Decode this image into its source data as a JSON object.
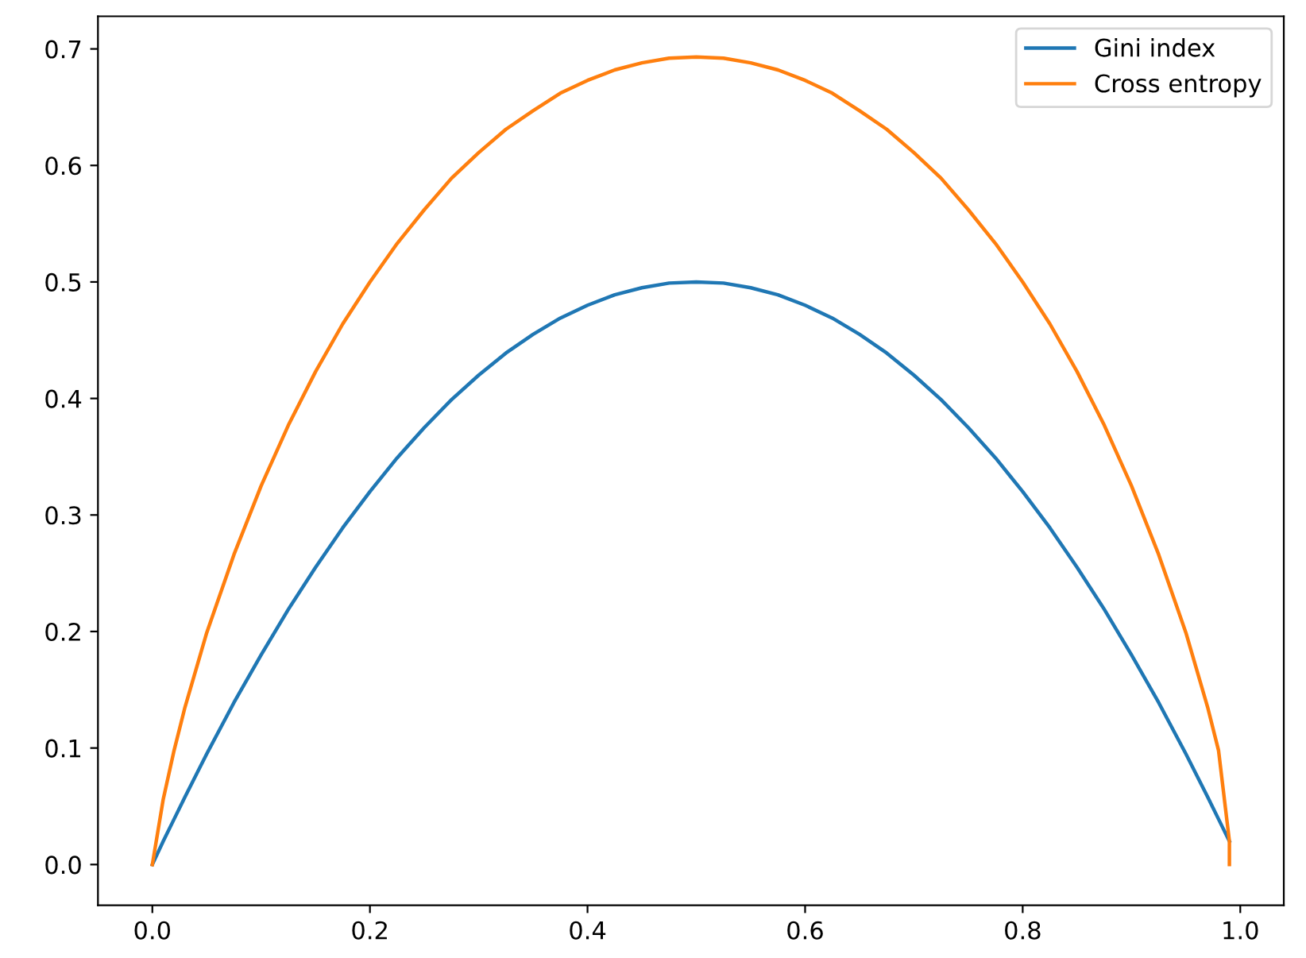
{
  "chart_data": {
    "type": "line",
    "xlim": [
      -0.05,
      1.04
    ],
    "ylim": [
      -0.035,
      0.728
    ],
    "xticks": [
      {
        "value": 0,
        "label": "0.0"
      },
      0.2,
      0.4,
      0.6,
      0.8,
      {
        "value": 1,
        "label": "1.0"
      }
    ],
    "yticks": [
      {
        "value": 0,
        "label": "0.0"
      },
      0.1,
      0.2,
      0.3,
      0.4,
      0.5,
      0.6,
      0.7
    ],
    "grid": false,
    "legend": "top right",
    "line_style": "solid",
    "marker": "none",
    "series": [
      {
        "name": "Gini index",
        "color": "#1f77b4",
        "x": [
          0,
          0.01,
          0.02,
          0.03,
          0.05,
          0.075,
          0.1,
          0.125,
          0.15,
          0.175,
          0.2,
          0.225,
          0.25,
          0.275,
          0.3,
          0.325,
          0.35,
          0.375,
          0.4,
          0.425,
          0.45,
          0.475,
          0.5,
          0.525,
          0.55,
          0.575,
          0.6,
          0.625,
          0.65,
          0.675,
          0.7,
          0.725,
          0.75,
          0.775,
          0.8,
          0.825,
          0.85,
          0.875,
          0.9,
          0.925,
          0.95,
          0.97,
          0.98,
          0.99
        ],
        "values": [
          0,
          0.02,
          0.039,
          0.058,
          0.095,
          0.139,
          0.18,
          0.219,
          0.255,
          0.289,
          0.32,
          0.349,
          0.375,
          0.399,
          0.42,
          0.439,
          0.455,
          0.469,
          0.48,
          0.489,
          0.495,
          0.499,
          0.5,
          0.499,
          0.495,
          0.489,
          0.48,
          0.469,
          0.455,
          0.439,
          0.42,
          0.399,
          0.375,
          0.349,
          0.32,
          0.289,
          0.255,
          0.219,
          0.18,
          0.139,
          0.095,
          0.058,
          0.039,
          0.02
        ]
      },
      {
        "name": "Cross entropy",
        "color": "#ff7f0e",
        "x": [
          0,
          0.01,
          0.02,
          0.03,
          0.05,
          0.075,
          0.1,
          0.125,
          0.15,
          0.175,
          0.2,
          0.225,
          0.25,
          0.275,
          0.3,
          0.325,
          0.35,
          0.375,
          0.4,
          0.425,
          0.45,
          0.475,
          0.5,
          0.525,
          0.55,
          0.575,
          0.6,
          0.625,
          0.65,
          0.675,
          0.7,
          0.725,
          0.75,
          0.775,
          0.8,
          0.825,
          0.85,
          0.875,
          0.9,
          0.925,
          0.95,
          0.97,
          0.98,
          0.99,
          0.99
        ],
        "values": [
          0,
          0.056,
          0.098,
          0.135,
          0.199,
          0.266,
          0.325,
          0.377,
          0.423,
          0.464,
          0.5,
          0.533,
          0.562,
          0.589,
          0.611,
          0.631,
          0.647,
          0.662,
          0.673,
          0.682,
          0.688,
          0.692,
          0.693,
          0.692,
          0.688,
          0.682,
          0.673,
          0.662,
          0.647,
          0.631,
          0.611,
          0.589,
          0.562,
          0.533,
          0.5,
          0.464,
          0.423,
          0.377,
          0.325,
          0.266,
          0.199,
          0.135,
          0.098,
          0.02,
          0.0
        ]
      }
    ]
  }
}
